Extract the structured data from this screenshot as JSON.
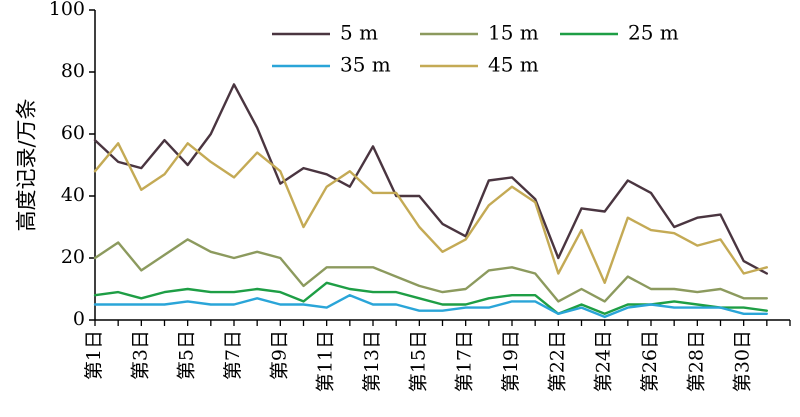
{
  "chart_data": {
    "type": "line",
    "title": "",
    "xlabel": "",
    "ylabel": "高度记录/万条",
    "ylim": [
      0,
      100
    ],
    "yticks": [
      0,
      20,
      40,
      60,
      80,
      100
    ],
    "x": [
      1,
      2,
      3,
      4,
      5,
      6,
      7,
      8,
      9,
      10,
      11,
      12,
      13,
      14,
      15,
      16,
      17,
      18,
      19,
      20,
      21,
      22,
      23,
      24,
      25,
      26,
      27,
      28,
      29,
      30,
      31
    ],
    "xtick_labels": [
      "第1日",
      "第3日",
      "第5日",
      "第7日",
      "第9日",
      "第11日",
      "第13日",
      "第15日",
      "第17日",
      "第19日",
      "第22日",
      "第24日",
      "第26日",
      "第28日",
      "第30日"
    ],
    "xtick_positions": [
      1,
      3,
      5,
      7,
      9,
      11,
      13,
      15,
      17,
      19,
      21,
      23,
      25,
      27,
      29
    ],
    "legend_position": "top-right",
    "grid": false,
    "series": [
      {
        "name": "5 m",
        "color": "#4a3540",
        "values": [
          58,
          51,
          49,
          58,
          50,
          60,
          76,
          62,
          44,
          49,
          47,
          43,
          56,
          40,
          40,
          31,
          27,
          45,
          46,
          39,
          20,
          36,
          35,
          45,
          41,
          30,
          33,
          34,
          19,
          15,
          null
        ]
      },
      {
        "name": "15 m",
        "color": "#8c9a5e",
        "values": [
          20,
          25,
          16,
          21,
          26,
          22,
          20,
          22,
          20,
          11,
          17,
          17,
          17,
          14,
          11,
          9,
          10,
          16,
          17,
          15,
          6,
          10,
          6,
          14,
          10,
          10,
          9,
          10,
          7,
          7,
          null
        ]
      },
      {
        "name": "25 m",
        "color": "#1e9e45",
        "values": [
          8,
          9,
          7,
          9,
          10,
          9,
          9,
          10,
          9,
          6,
          12,
          10,
          9,
          9,
          7,
          5,
          5,
          7,
          8,
          8,
          2,
          5,
          2,
          5,
          5,
          6,
          5,
          4,
          4,
          3,
          null
        ]
      },
      {
        "name": "35 m",
        "color": "#2aa5d8",
        "values": [
          5,
          5,
          5,
          5,
          6,
          5,
          5,
          7,
          5,
          5,
          4,
          8,
          5,
          5,
          3,
          3,
          4,
          4,
          6,
          6,
          2,
          4,
          1,
          4,
          5,
          4,
          4,
          4,
          2,
          2,
          null
        ]
      },
      {
        "name": "45 m",
        "color": "#c4aa55",
        "values": [
          48,
          57,
          42,
          47,
          57,
          51,
          46,
          54,
          48,
          30,
          43,
          48,
          41,
          41,
          30,
          22,
          26,
          37,
          43,
          38,
          15,
          29,
          12,
          33,
          29,
          28,
          24,
          26,
          15,
          17,
          null
        ]
      }
    ]
  }
}
